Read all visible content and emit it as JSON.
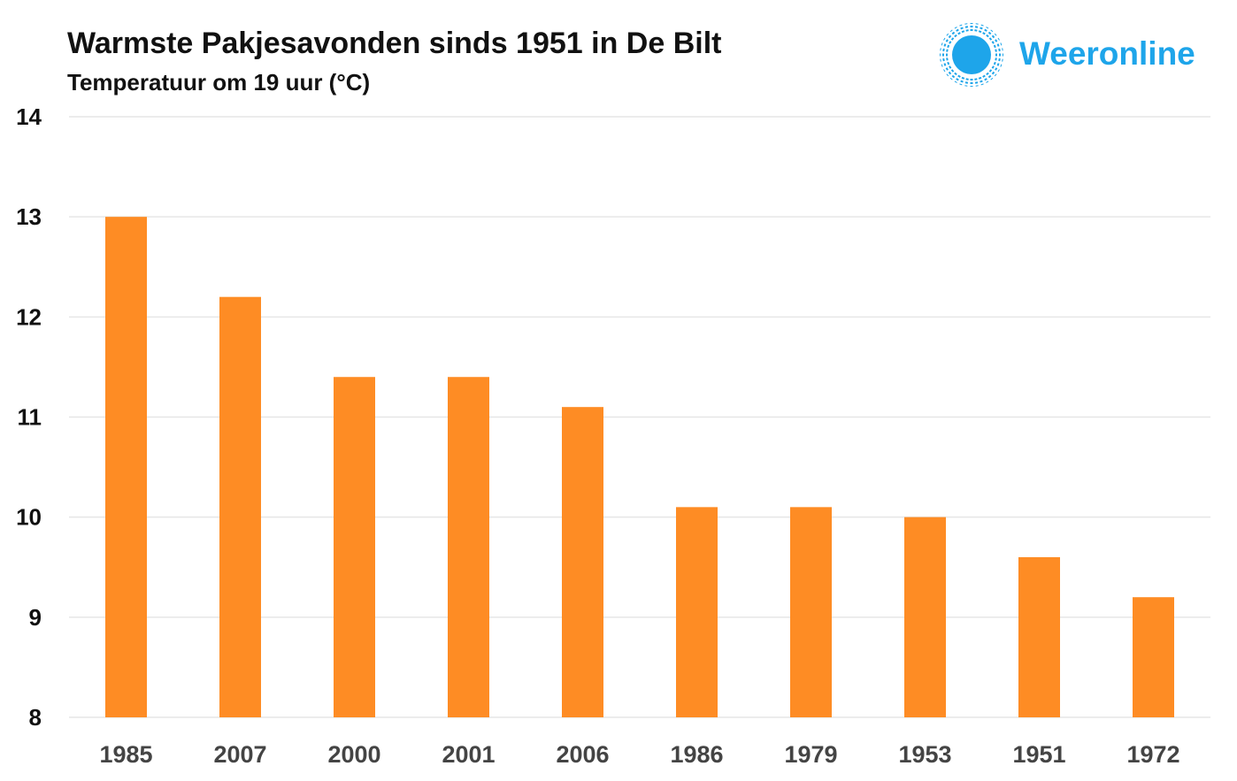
{
  "header": {
    "title": "Warmste Pakjesavonden sinds 1951 in De Bilt",
    "subtitle": "Temperatuur om 19 uur (°C)"
  },
  "brand": {
    "name": "Weeronline",
    "icon": "sun-icon",
    "color": "#1ea5ea"
  },
  "colors": {
    "bar": "#fe8c24",
    "grid": "#e6e6e6"
  },
  "chart_data": {
    "type": "bar",
    "title": "Warmste Pakjesavonden sinds 1951 in De Bilt",
    "subtitle": "Temperatuur om 19 uur (°C)",
    "xlabel": "",
    "ylabel": "",
    "categories": [
      "1985",
      "2007",
      "2000",
      "2001",
      "2006",
      "1986",
      "1979",
      "1953",
      "1951",
      "1972"
    ],
    "values": [
      13.0,
      12.2,
      11.4,
      11.4,
      11.1,
      10.1,
      10.1,
      10.0,
      9.6,
      9.2
    ],
    "ylim": [
      8,
      14
    ],
    "yticks": [
      "8",
      "9",
      "10",
      "11",
      "12",
      "13",
      "14"
    ],
    "grid": true,
    "legend": "none"
  }
}
